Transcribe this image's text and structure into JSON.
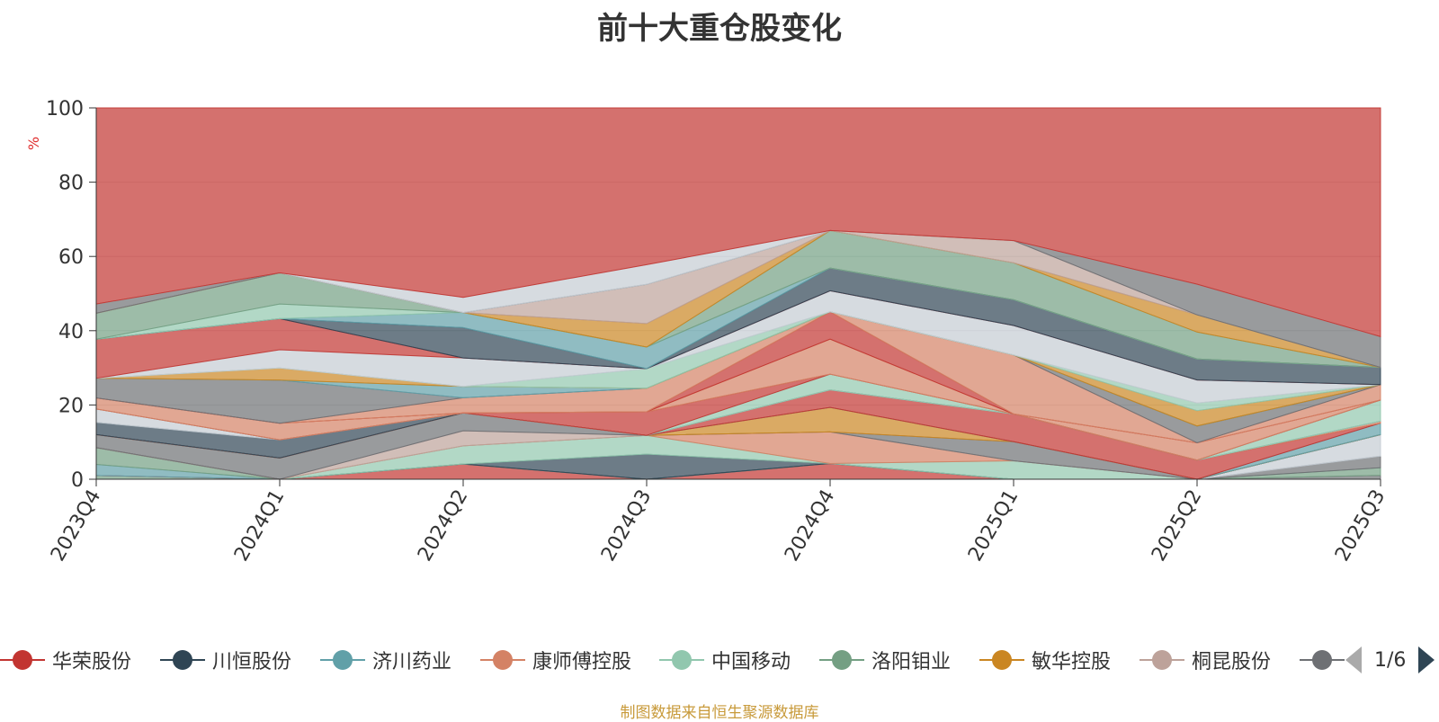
{
  "title": "前十大重仓股变化",
  "source": "制图数据来自恒生聚源数据库",
  "pager": {
    "text": "1/6"
  },
  "chart_data": {
    "type": "area",
    "stacked": true,
    "percent_stacked": true,
    "ylabel": "%",
    "ylim": [
      0,
      100
    ],
    "yticks": [
      0,
      20,
      40,
      60,
      80,
      100
    ],
    "grid": true,
    "categories": [
      "2023Q4",
      "2024Q1",
      "2024Q2",
      "2024Q3",
      "2024Q4",
      "2025Q1",
      "2025Q2",
      "2025Q3"
    ],
    "legend_position": "bottom",
    "legend": [
      {
        "name": "华荣股份",
        "color": "#c23531"
      },
      {
        "name": "川恒股份",
        "color": "#2f4554"
      },
      {
        "name": "济川药业",
        "color": "#61a0a8"
      },
      {
        "name": "康师傅控股",
        "color": "#d48265"
      },
      {
        "name": "中国移动",
        "color": "#91c7ae"
      },
      {
        "name": "洛阳钼业",
        "color": "#749f83"
      },
      {
        "name": "敏华控股",
        "color": "#ca8622"
      },
      {
        "name": "桐昆股份",
        "color": "#bda29a"
      },
      {
        "name": "",
        "color": "#6e7074"
      }
    ],
    "series": [
      {
        "color": "#6e7074",
        "values": [
          0,
          0,
          0,
          0,
          0,
          0,
          0,
          1.0
        ]
      },
      {
        "color": "#749f83",
        "values": [
          1.0,
          0,
          0,
          0,
          0,
          0,
          0,
          2.0
        ]
      },
      {
        "color": "#6e7074",
        "values": [
          0,
          0,
          0,
          0,
          0,
          0,
          0,
          3.0
        ]
      },
      {
        "color": "#c4ccd3",
        "values": [
          0,
          0,
          0,
          0,
          0,
          0,
          0,
          5.6
        ]
      },
      {
        "color": "#c23531",
        "values": [
          0,
          0,
          4.0,
          0,
          4.5,
          0,
          0,
          0
        ]
      },
      {
        "color": "#61a0a8",
        "values": [
          3.0,
          0,
          0,
          0,
          0,
          0,
          0,
          0
        ]
      },
      {
        "color": "#749f83",
        "values": [
          4.5,
          0,
          0,
          0,
          0,
          0,
          0,
          0
        ]
      },
      {
        "color": "#2f4554",
        "values": [
          0,
          0,
          0,
          6.4,
          0,
          0,
          0,
          0
        ]
      },
      {
        "color": "#91c7ae",
        "values": [
          0,
          0,
          4.8,
          4.8,
          0,
          5.0,
          0,
          0
        ]
      },
      {
        "color": "#d48265",
        "values": [
          0,
          0,
          0,
          0,
          9.0,
          0,
          0,
          0
        ]
      },
      {
        "color": "#bda29a",
        "values": [
          0,
          0,
          4.0,
          0,
          0,
          0,
          0,
          0
        ]
      },
      {
        "color": "#6e7074",
        "values": [
          3.5,
          5.8,
          4.7,
          0,
          0,
          5.2,
          0,
          0
        ]
      },
      {
        "color": "#ca8622",
        "values": [
          0,
          0,
          0,
          0,
          7.0,
          0,
          0,
          0
        ]
      },
      {
        "color": "#61a0a8",
        "values": [
          0,
          0,
          0,
          0,
          0,
          0,
          0,
          3.0
        ]
      },
      {
        "color": "#c23531",
        "values": [
          0,
          0,
          0,
          0,
          5.0,
          7.5,
          5.0,
          0
        ]
      },
      {
        "color": "#d48265",
        "values": [
          0,
          0,
          0,
          0,
          0,
          0,
          0,
          0.5
        ]
      },
      {
        "color": "#2f4554",
        "values": [
          3.3,
          5.0,
          0,
          0,
          0,
          0,
          0,
          0
        ]
      },
      {
        "color": "#c4ccd3",
        "values": [
          3.6,
          0,
          0,
          0,
          0,
          0,
          0,
          0
        ]
      },
      {
        "color": "#91c7ae",
        "values": [
          0,
          0,
          0,
          0,
          4.5,
          0,
          0,
          5.5
        ]
      },
      {
        "color": "#c23531",
        "values": [
          0,
          0,
          0,
          6.0,
          0,
          0,
          0,
          0
        ]
      },
      {
        "color": "#d48265",
        "values": [
          3.0,
          4.5,
          0,
          0,
          10.0,
          0,
          4.5,
          0
        ]
      },
      {
        "color": "#c23531",
        "values": [
          0,
          0,
          0,
          0,
          7.8,
          0,
          0,
          0
        ]
      },
      {
        "color": "#d48265",
        "values": [
          0,
          0,
          4.0,
          6.0,
          0,
          16.0,
          0,
          4.0
        ]
      },
      {
        "color": "#6e7074",
        "values": [
          5.3,
          11.8,
          0,
          0,
          0,
          0,
          4.4,
          0
        ]
      },
      {
        "color": "#61a0a8",
        "values": [
          0,
          0,
          3.0,
          0,
          0,
          0,
          0,
          0
        ]
      },
      {
        "color": "#ca8622",
        "values": [
          0,
          3.3,
          0,
          0,
          0,
          0,
          4.0,
          0
        ]
      },
      {
        "color": "#91c7ae",
        "values": [
          0,
          0,
          0,
          5.0,
          0,
          0,
          2.0,
          0
        ]
      },
      {
        "color": "#c4ccd3",
        "values": [
          0,
          5.0,
          7.5,
          0,
          6.0,
          8.0,
          6.0,
          0
        ]
      },
      {
        "color": "#c23531",
        "values": [
          10.5,
          8.5,
          0,
          0,
          0,
          0,
          0,
          0
        ]
      },
      {
        "color": "#2f4554",
        "values": [
          0,
          0,
          8.0,
          0,
          6.5,
          7.0,
          5.5,
          4.5
        ]
      },
      {
        "color": "#61a0a8",
        "values": [
          0,
          0,
          4.0,
          5.5,
          0,
          0,
          0,
          0
        ]
      },
      {
        "color": "#91c7ae",
        "values": [
          0,
          4.0,
          0,
          0,
          0,
          0,
          0,
          0
        ]
      },
      {
        "color": "#749f83",
        "values": [
          7.0,
          8.5,
          0,
          0,
          10.7,
          10.0,
          7.0,
          0
        ]
      },
      {
        "color": "#ca8622",
        "values": [
          0,
          0,
          0,
          6.0,
          0,
          0,
          4.5,
          0
        ]
      },
      {
        "color": "#bda29a",
        "values": [
          0,
          0,
          0,
          10.0,
          0,
          6.0,
          0,
          0
        ]
      },
      {
        "color": "#6e7074",
        "values": [
          2.5,
          0,
          0,
          0,
          0,
          0,
          8.0,
          8.0
        ]
      },
      {
        "color": "#c4ccd3",
        "values": [
          0,
          0,
          4.0,
          5.0,
          0,
          0,
          0,
          0
        ]
      },
      {
        "color": "#c23531",
        "values": [
          52.8,
          45.1,
          50.0,
          40.0,
          35.0,
          36.0,
          46.0,
          59.5
        ]
      }
    ]
  }
}
